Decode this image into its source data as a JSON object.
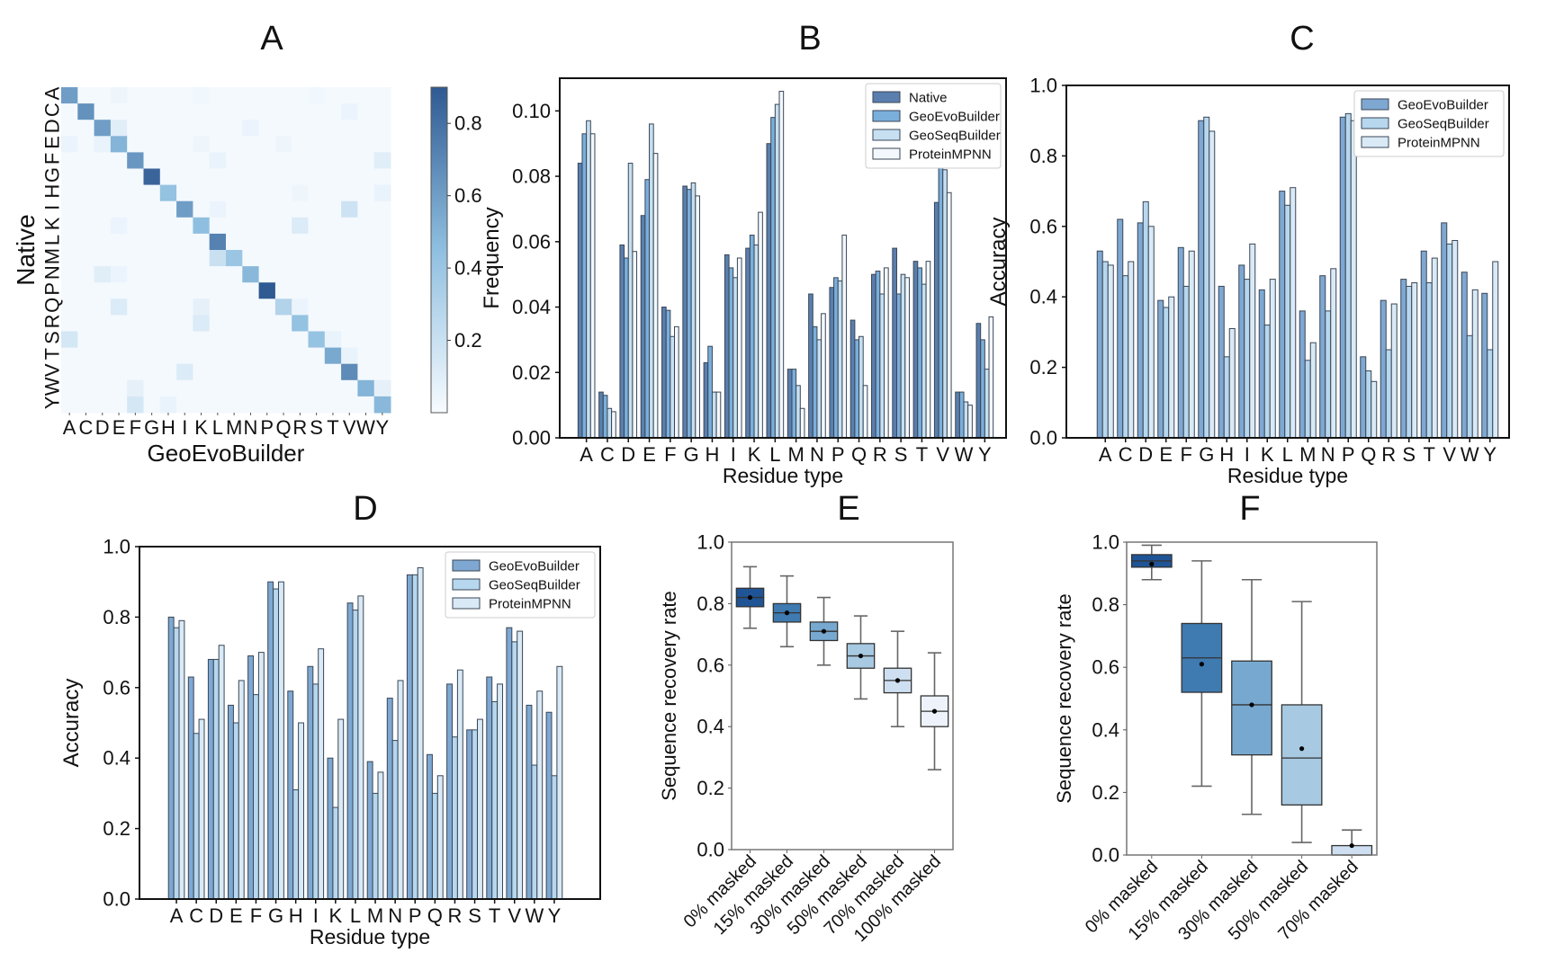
{
  "panels": {
    "A": {
      "label": "A"
    },
    "B": {
      "label": "B"
    },
    "C": {
      "label": "C"
    },
    "D": {
      "label": "D"
    },
    "E": {
      "label": "E"
    },
    "F": {
      "label": "F"
    }
  },
  "colors": {
    "native": "#5a7fae",
    "geoevo": "#7aafdc",
    "geoseq": "#c6e0f1",
    "mpnn": "#f3f8fc",
    "c_geoevo": "#7ea8d2",
    "c_geoseq": "#b6d7ee",
    "c_mpnn": "#d9eaf6",
    "edge": "#2b2b2b",
    "cmap_low": "#f7fbff",
    "cmap_high": "#2f5a92"
  },
  "chart_data": [
    {
      "id": "A",
      "type": "heatmap",
      "title": "A",
      "xlabel": "GeoEvoBuilder",
      "ylabel": "Native",
      "categories": [
        "A",
        "C",
        "D",
        "E",
        "F",
        "G",
        "H",
        "I",
        "K",
        "L",
        "M",
        "N",
        "P",
        "Q",
        "R",
        "S",
        "T",
        "V",
        "W",
        "Y"
      ],
      "ytick_label_string": "YWVTSRQPNMLK I HGFEDCA",
      "colorbar": {
        "range": [
          0,
          0.9
        ],
        "ticks": [
          0.2,
          0.4,
          0.6,
          0.8
        ]
      },
      "diagonal": [
        0.6,
        0.65,
        0.6,
        0.5,
        0.63,
        0.85,
        0.43,
        0.6,
        0.45,
        0.72,
        0.4,
        0.48,
        0.9,
        0.3,
        0.43,
        0.42,
        0.55,
        0.68,
        0.5,
        0.48
      ],
      "offdiagonal": [
        {
          "row": "A",
          "col": "E",
          "value": 0.04
        },
        {
          "row": "A",
          "col": "K",
          "value": 0.03
        },
        {
          "row": "A",
          "col": "S",
          "value": 0.03
        },
        {
          "row": "C",
          "col": "V",
          "value": 0.05
        },
        {
          "row": "D",
          "col": "E",
          "value": 0.1
        },
        {
          "row": "D",
          "col": "N",
          "value": 0.05
        },
        {
          "row": "E",
          "col": "A",
          "value": 0.05
        },
        {
          "row": "E",
          "col": "D",
          "value": 0.06
        },
        {
          "row": "E",
          "col": "K",
          "value": 0.04
        },
        {
          "row": "E",
          "col": "Q",
          "value": 0.04
        },
        {
          "row": "F",
          "col": "L",
          "value": 0.06
        },
        {
          "row": "F",
          "col": "Y",
          "value": 0.1
        },
        {
          "row": "H",
          "col": "Y",
          "value": 0.06
        },
        {
          "row": "H",
          "col": "R",
          "value": 0.04
        },
        {
          "row": "I",
          "col": "V",
          "value": 0.18
        },
        {
          "row": "I",
          "col": "L",
          "value": 0.05
        },
        {
          "row": "K",
          "col": "R",
          "value": 0.12
        },
        {
          "row": "K",
          "col": "E",
          "value": 0.05
        },
        {
          "row": "M",
          "col": "L",
          "value": 0.2
        },
        {
          "row": "N",
          "col": "D",
          "value": 0.1
        },
        {
          "row": "N",
          "col": "E",
          "value": 0.05
        },
        {
          "row": "Q",
          "col": "E",
          "value": 0.12
        },
        {
          "row": "Q",
          "col": "K",
          "value": 0.08
        },
        {
          "row": "Q",
          "col": "R",
          "value": 0.05
        },
        {
          "row": "R",
          "col": "K",
          "value": 0.12
        },
        {
          "row": "S",
          "col": "A",
          "value": 0.15
        },
        {
          "row": "S",
          "col": "T",
          "value": 0.06
        },
        {
          "row": "T",
          "col": "V",
          "value": 0.06
        },
        {
          "row": "V",
          "col": "I",
          "value": 0.12
        },
        {
          "row": "W",
          "col": "F",
          "value": 0.08
        },
        {
          "row": "W",
          "col": "Y",
          "value": 0.08
        },
        {
          "row": "Y",
          "col": "F",
          "value": 0.15
        },
        {
          "row": "Y",
          "col": "H",
          "value": 0.06
        }
      ]
    },
    {
      "id": "B",
      "type": "bar",
      "title": "B",
      "xlabel": "Residue type",
      "ylabel": "Frequency",
      "ylim": [
        0,
        0.11
      ],
      "yticks": [
        "0.00",
        "0.02",
        "0.04",
        "0.06",
        "0.08",
        "0.10"
      ],
      "ytick_values": [
        0,
        0.02,
        0.04,
        0.06,
        0.08,
        0.1
      ],
      "legend_position": "top-right",
      "categories": [
        "A",
        "C",
        "D",
        "E",
        "F",
        "G",
        "H",
        "I",
        "K",
        "L",
        "M",
        "N",
        "P",
        "Q",
        "R",
        "S",
        "T",
        "V",
        "W",
        "Y"
      ],
      "series": [
        {
          "name": "Native",
          "color_key": "native",
          "values": [
            0.084,
            0.014,
            0.059,
            0.068,
            0.04,
            0.077,
            0.023,
            0.056,
            0.058,
            0.09,
            0.021,
            0.044,
            0.046,
            0.036,
            0.05,
            0.058,
            0.054,
            0.072,
            0.014,
            0.035
          ]
        },
        {
          "name": "GeoEvoBuilder",
          "color_key": "geoevo",
          "values": [
            0.093,
            0.013,
            0.055,
            0.079,
            0.039,
            0.076,
            0.028,
            0.052,
            0.062,
            0.098,
            0.021,
            0.034,
            0.049,
            0.03,
            0.051,
            0.044,
            0.052,
            0.084,
            0.014,
            0.03
          ]
        },
        {
          "name": "GeoSeqBuilder",
          "color_key": "geoseq",
          "values": [
            0.097,
            0.009,
            0.084,
            0.096,
            0.031,
            0.078,
            0.014,
            0.049,
            0.059,
            0.102,
            0.016,
            0.03,
            0.048,
            0.031,
            0.044,
            0.05,
            0.047,
            0.082,
            0.011,
            0.021
          ]
        },
        {
          "name": "ProteinMPNN",
          "color_key": "mpnn",
          "values": [
            0.093,
            0.008,
            0.057,
            0.087,
            0.034,
            0.074,
            0.014,
            0.055,
            0.069,
            0.106,
            0.009,
            0.038,
            0.062,
            0.016,
            0.052,
            0.049,
            0.054,
            0.075,
            0.01,
            0.037
          ]
        }
      ]
    },
    {
      "id": "C",
      "type": "bar",
      "title": "C",
      "xlabel": "Residue type",
      "ylabel": "Accuracy",
      "ylim": [
        0,
        1.0
      ],
      "yticks": [
        "0.0",
        "0.2",
        "0.4",
        "0.6",
        "0.8",
        "1.0"
      ],
      "ytick_values": [
        0,
        0.2,
        0.4,
        0.6,
        0.8,
        1.0
      ],
      "legend_position": "top-right",
      "categories": [
        "A",
        "C",
        "D",
        "E",
        "F",
        "G",
        "H",
        "I",
        "K",
        "L",
        "M",
        "N",
        "P",
        "Q",
        "R",
        "S",
        "T",
        "V",
        "W",
        "Y"
      ],
      "series": [
        {
          "name": "GeoEvoBuilder",
          "color_key": "c_geoevo",
          "values": [
            0.53,
            0.62,
            0.61,
            0.39,
            0.54,
            0.9,
            0.43,
            0.49,
            0.42,
            0.7,
            0.36,
            0.46,
            0.91,
            0.23,
            0.39,
            0.45,
            0.53,
            0.61,
            0.47,
            0.41
          ]
        },
        {
          "name": "GeoSeqBuilder",
          "color_key": "c_geoseq",
          "values": [
            0.5,
            0.46,
            0.67,
            0.37,
            0.43,
            0.91,
            0.23,
            0.45,
            0.32,
            0.66,
            0.22,
            0.36,
            0.92,
            0.19,
            0.25,
            0.43,
            0.44,
            0.55,
            0.29,
            0.25
          ]
        },
        {
          "name": "ProteinMPNN",
          "color_key": "c_mpnn",
          "values": [
            0.49,
            0.5,
            0.6,
            0.4,
            0.53,
            0.87,
            0.31,
            0.55,
            0.45,
            0.71,
            0.27,
            0.48,
            0.9,
            0.16,
            0.38,
            0.44,
            0.51,
            0.56,
            0.42,
            0.5
          ]
        }
      ]
    },
    {
      "id": "D",
      "type": "bar",
      "title": "D",
      "xlabel": "Residue type",
      "ylabel": "Accuracy",
      "ylim": [
        0,
        1.0
      ],
      "yticks": [
        "0.0",
        "0.2",
        "0.4",
        "0.6",
        "0.8",
        "1.0"
      ],
      "ytick_values": [
        0,
        0.2,
        0.4,
        0.6,
        0.8,
        1.0
      ],
      "legend_position": "top-right",
      "categories": [
        "A",
        "C",
        "D",
        "E",
        "F",
        "G",
        "H",
        "I",
        "K",
        "L",
        "M",
        "N",
        "P",
        "Q",
        "R",
        "S",
        "T",
        "V",
        "W",
        "Y"
      ],
      "series": [
        {
          "name": "GeoEvoBuilder",
          "color_key": "c_geoevo",
          "values": [
            0.8,
            0.63,
            0.68,
            0.55,
            0.69,
            0.9,
            0.59,
            0.66,
            0.4,
            0.84,
            0.39,
            0.57,
            0.92,
            0.41,
            0.61,
            0.48,
            0.63,
            0.77,
            0.55,
            0.53
          ]
        },
        {
          "name": "GeoSeqBuilder",
          "color_key": "c_geoseq",
          "values": [
            0.77,
            0.47,
            0.68,
            0.5,
            0.58,
            0.88,
            0.31,
            0.61,
            0.26,
            0.82,
            0.3,
            0.45,
            0.92,
            0.3,
            0.46,
            0.48,
            0.56,
            0.73,
            0.38,
            0.35
          ]
        },
        {
          "name": "ProteinMPNN",
          "color_key": "c_mpnn",
          "values": [
            0.79,
            0.51,
            0.72,
            0.62,
            0.7,
            0.9,
            0.5,
            0.71,
            0.51,
            0.86,
            0.36,
            0.62,
            0.94,
            0.35,
            0.65,
            0.51,
            0.61,
            0.76,
            0.59,
            0.66
          ]
        }
      ]
    },
    {
      "id": "E",
      "type": "box",
      "title": "E",
      "xlabel": "",
      "ylabel": "Sequence recovery rate",
      "ylim": [
        0,
        1.0
      ],
      "yticks": [
        "0.0",
        "0.2",
        "0.4",
        "0.6",
        "0.8",
        "1.0"
      ],
      "ytick_values": [
        0,
        0.2,
        0.4,
        0.6,
        0.8,
        1.0
      ],
      "categories": [
        "0% masked",
        "15% masked",
        "30% masked",
        "50% masked",
        "70% masked",
        "100% masked"
      ],
      "boxes": [
        {
          "whisker_low": 0.72,
          "q1": 0.79,
          "median": 0.82,
          "q3": 0.85,
          "whisker_high": 0.92,
          "mean": 0.82,
          "color": "#1f5596"
        },
        {
          "whisker_low": 0.66,
          "q1": 0.74,
          "median": 0.77,
          "q3": 0.8,
          "whisker_high": 0.89,
          "mean": 0.77,
          "color": "#3f7ab0"
        },
        {
          "whisker_low": 0.6,
          "q1": 0.68,
          "median": 0.71,
          "q3": 0.74,
          "whisker_high": 0.82,
          "mean": 0.71,
          "color": "#77a9d0"
        },
        {
          "whisker_low": 0.49,
          "q1": 0.59,
          "median": 0.63,
          "q3": 0.67,
          "whisker_high": 0.76,
          "mean": 0.63,
          "color": "#a7c9e2"
        },
        {
          "whisker_low": 0.4,
          "q1": 0.51,
          "median": 0.55,
          "q3": 0.59,
          "whisker_high": 0.71,
          "mean": 0.55,
          "color": "#cddff0"
        },
        {
          "whisker_low": 0.26,
          "q1": 0.4,
          "median": 0.45,
          "q3": 0.5,
          "whisker_high": 0.64,
          "mean": 0.45,
          "color": "#eef3fb"
        }
      ]
    },
    {
      "id": "F",
      "type": "box",
      "title": "F",
      "xlabel": "",
      "ylabel": "Sequence recovery rate",
      "ylim": [
        0,
        1.0
      ],
      "yticks": [
        "0.0",
        "0.2",
        "0.4",
        "0.6",
        "0.8",
        "1.0"
      ],
      "ytick_values": [
        0,
        0.2,
        0.4,
        0.6,
        0.8,
        1.0
      ],
      "categories": [
        "0% masked",
        "15% masked",
        "30% masked",
        "50% masked",
        "70% masked"
      ],
      "boxes": [
        {
          "whisker_low": 0.88,
          "q1": 0.92,
          "median": 0.94,
          "q3": 0.96,
          "whisker_high": 0.99,
          "mean": 0.93,
          "color": "#1f5596"
        },
        {
          "whisker_low": 0.22,
          "q1": 0.52,
          "median": 0.63,
          "q3": 0.74,
          "whisker_high": 0.94,
          "mean": 0.61,
          "color": "#3f7ab0"
        },
        {
          "whisker_low": 0.13,
          "q1": 0.32,
          "median": 0.48,
          "q3": 0.62,
          "whisker_high": 0.88,
          "mean": 0.48,
          "color": "#77a9d0"
        },
        {
          "whisker_low": 0.04,
          "q1": 0.16,
          "median": 0.31,
          "q3": 0.48,
          "whisker_high": 0.81,
          "mean": 0.34,
          "color": "#a7c9e2"
        },
        {
          "whisker_low": 0.0,
          "q1": 0.0,
          "median": 0.0,
          "q3": 0.03,
          "whisker_high": 0.08,
          "mean": 0.03,
          "color": "#cddff0"
        }
      ]
    }
  ]
}
